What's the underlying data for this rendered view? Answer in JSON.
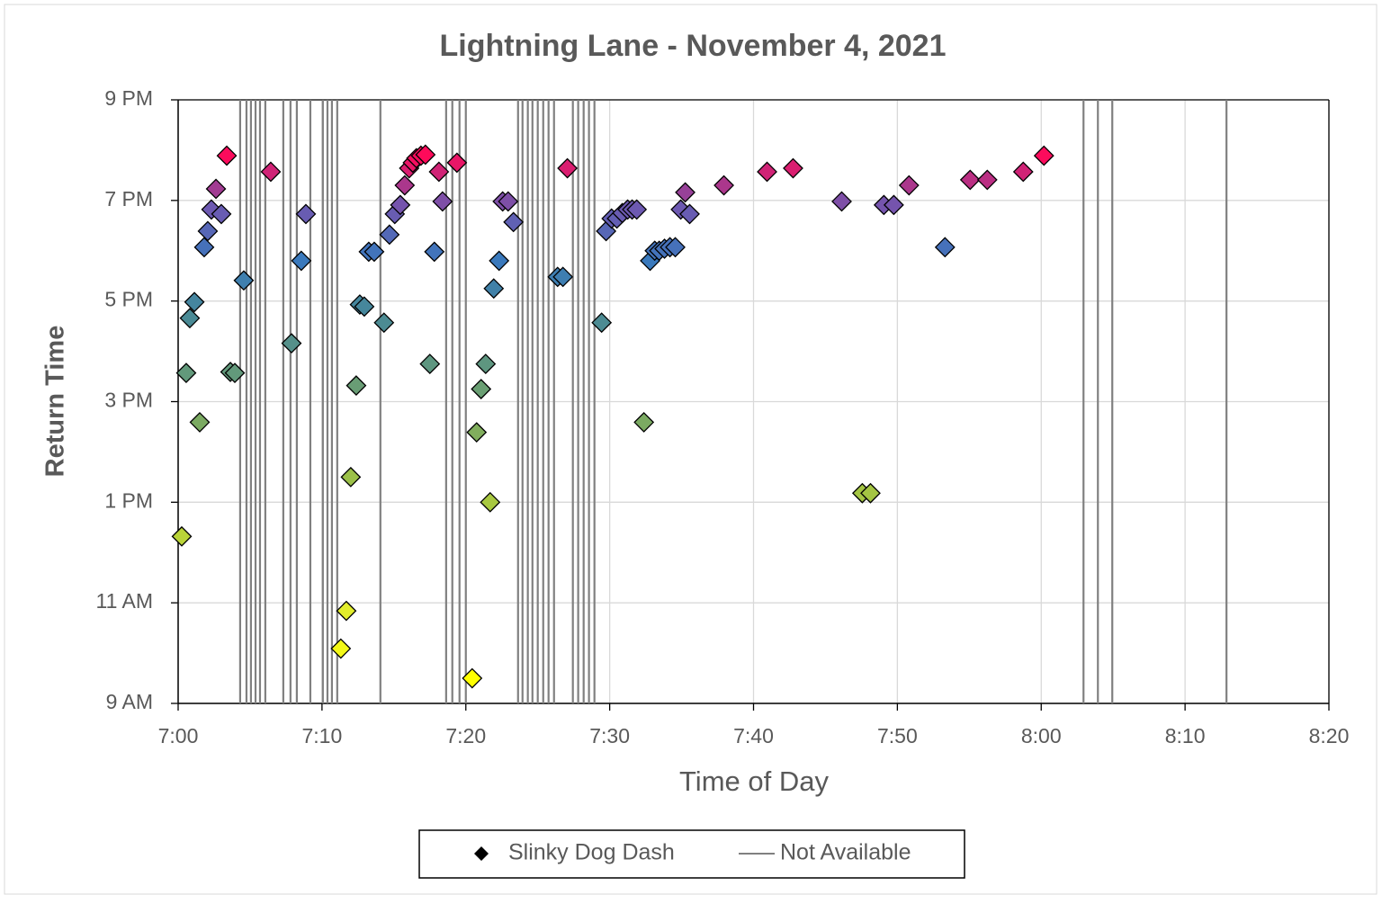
{
  "chart_data": {
    "type": "scatter",
    "title": "Lightning Lane - November 4, 2021",
    "x_label": "Time of Day",
    "y_label": "Return Time",
    "xlim": [
      420,
      500
    ],
    "xticks": [
      {
        "value": 420,
        "label": "7:00"
      },
      {
        "value": 430,
        "label": "7:10"
      },
      {
        "value": 440,
        "label": "7:20"
      },
      {
        "value": 450,
        "label": "7:30"
      },
      {
        "value": 460,
        "label": "7:40"
      },
      {
        "value": 470,
        "label": "7:50"
      },
      {
        "value": 480,
        "label": "8:00"
      },
      {
        "value": 490,
        "label": "8:10"
      },
      {
        "value": 500,
        "label": "8:20"
      }
    ],
    "ylim": [
      9,
      21
    ],
    "yticks": [
      {
        "value": 9,
        "label": "9 AM"
      },
      {
        "value": 11,
        "label": "11 AM"
      },
      {
        "value": 13,
        "label": "1 PM"
      },
      {
        "value": 15,
        "label": "3 PM"
      },
      {
        "value": 17,
        "label": "5 PM"
      },
      {
        "value": 19,
        "label": "7 PM"
      },
      {
        "value": 21,
        "label": "9 PM"
      }
    ],
    "grid": true,
    "legend": "bottom",
    "colorscale": [
      "#ffff00",
      "#eaf22a",
      "#cfe031",
      "#b2cf3c",
      "#97bd4a",
      "#78a865",
      "#5e9680",
      "#478898",
      "#3a79bd",
      "#6f57b0",
      "#ff0a5a"
    ],
    "series": [
      {
        "name": "Slinky Dog Dash",
        "color": "#000000",
        "x": [
          420.25,
          420.56,
          420.81,
          421.13,
          421.5,
          421.81,
          422.06,
          422.31,
          422.63,
          423,
          423.38,
          423.63,
          423.94,
          424.56,
          426.44,
          427.88,
          428.56,
          428.88,
          431.31,
          431.69,
          432,
          432.38,
          432.63,
          432.94,
          433.25,
          433.63,
          434.31,
          434.69,
          435.06,
          435.44,
          435.75,
          436.06,
          436.31,
          436.56,
          436.88,
          437.19,
          437.5,
          437.81,
          438.13,
          438.38,
          439.38,
          440.44,
          440.75,
          441.06,
          441.38,
          441.69,
          441.94,
          442.31,
          442.56,
          442.94,
          443.31,
          446.38,
          446.75,
          447.06,
          449.44,
          449.75,
          450.13,
          450.5,
          450.88,
          451.25,
          451.56,
          451.88,
          452.38,
          452.81,
          453.13,
          453.44,
          453.81,
          454.19,
          454.56,
          454.94,
          455.25,
          455.56,
          457.94,
          460.94,
          462.75,
          466.13,
          467.56,
          468.13,
          469.06,
          469.75,
          470.81,
          473.31,
          475.06,
          476.25,
          478.75,
          480.19
        ],
        "values": [
          12.32,
          15.57,
          16.66,
          16.98,
          14.59,
          18.07,
          18.39,
          18.82,
          19.23,
          18.73,
          19.89,
          15.59,
          15.57,
          17.41,
          19.57,
          16.16,
          17.8,
          18.73,
          10.09,
          10.84,
          13.5,
          15.32,
          16.93,
          16.89,
          17.98,
          17.98,
          16.57,
          18.32,
          18.73,
          18.91,
          19.3,
          19.64,
          19.75,
          19.84,
          19.89,
          19.91,
          15.75,
          17.98,
          19.57,
          18.98,
          19.75,
          9.5,
          14.39,
          15.25,
          15.75,
          13.0,
          17.25,
          17.8,
          18.98,
          18.98,
          18.57,
          17.48,
          17.48,
          19.64,
          16.57,
          18.39,
          18.64,
          18.64,
          18.75,
          18.82,
          18.82,
          18.82,
          14.59,
          17.8,
          18.0,
          18.0,
          18.04,
          18.07,
          18.07,
          18.82,
          19.16,
          18.73,
          19.3,
          19.57,
          19.64,
          18.98,
          13.18,
          13.18,
          18.91,
          18.91,
          19.3,
          18.07,
          19.41,
          19.41,
          19.57,
          19.89
        ]
      },
      {
        "name": "Not Available",
        "color": "#808080",
        "type": "vline",
        "x": [
          424.31,
          424.75,
          425.06,
          425.38,
          425.69,
          426.06,
          427.31,
          427.81,
          428.25,
          429.19,
          430.06,
          430.38,
          430.69,
          431.06,
          434.06,
          438.63,
          439.06,
          439.56,
          440.0,
          443.63,
          443.94,
          444.31,
          444.63,
          445.0,
          445.38,
          445.75,
          446.13,
          447.44,
          447.81,
          448.19,
          448.56,
          448.94,
          482.94,
          483.94,
          484.94,
          492.88
        ]
      }
    ]
  }
}
